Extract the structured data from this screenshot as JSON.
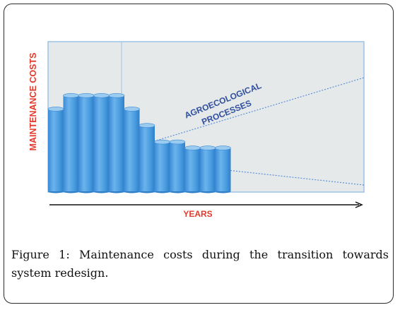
{
  "figure": {
    "label": "Figure 1:",
    "caption_text": " Maintenance costs during the transition towards system redesign."
  },
  "diagram": {
    "y_axis_label": "MAINTENANCE COSTS",
    "x_axis_label": "YEARS",
    "process_label_line1": "AGROECOLOGICAL",
    "process_label_line2": "PROCESSES",
    "colors": {
      "plot_background": "#e6e9ea",
      "plot_border": "#9cc3e6",
      "axis_label_red": "#e03a2d",
      "process_label_blue": "#2f4f9e",
      "dotted_line_blue": "#5b8fd6",
      "cylinder_top": "#8fc4ee",
      "cylinder_body": "#4a9de0",
      "cylinder_dark": "#2f7fc8"
    },
    "bars": [
      {
        "name": "year-1",
        "level": 0.55
      },
      {
        "name": "year-2",
        "level": 0.64
      },
      {
        "name": "year-3",
        "level": 0.64
      },
      {
        "name": "year-4",
        "level": 0.64
      },
      {
        "name": "year-5",
        "level": 0.64
      },
      {
        "name": "year-6",
        "level": 0.55
      },
      {
        "name": "year-7",
        "level": 0.44
      },
      {
        "name": "year-8",
        "level": 0.33
      },
      {
        "name": "year-9",
        "level": 0.33
      },
      {
        "name": "year-10",
        "level": 0.29
      },
      {
        "name": "year-11",
        "level": 0.29
      },
      {
        "name": "year-12",
        "level": 0.29
      }
    ]
  }
}
